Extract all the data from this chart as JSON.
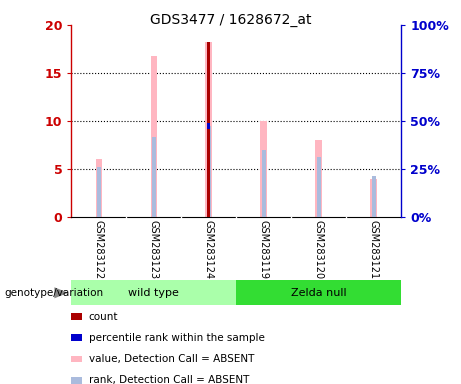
{
  "title": "GDS3477 / 1628672_at",
  "samples": [
    "GSM283122",
    "GSM283123",
    "GSM283124",
    "GSM283119",
    "GSM283120",
    "GSM283121"
  ],
  "ylim_left": [
    0,
    20
  ],
  "ylim_right": [
    0,
    100
  ],
  "yticks_left": [
    0,
    5,
    10,
    15,
    20
  ],
  "yticks_right": [
    0,
    25,
    50,
    75,
    100
  ],
  "ytick_labels_left": [
    "0",
    "5",
    "10",
    "15",
    "20"
  ],
  "ytick_labels_right": [
    "0%",
    "25%",
    "50%",
    "75%",
    "100%"
  ],
  "count_values": [
    0,
    0,
    18.2,
    0,
    0,
    0
  ],
  "count_color": "#AA0000",
  "percentile_values": [
    0,
    0,
    9.5,
    0,
    0,
    0
  ],
  "percentile_color": "#0000CC",
  "value_absent": [
    6.0,
    16.8,
    18.2,
    10.0,
    8.0,
    4.0
  ],
  "value_absent_color": "#FFB6C1",
  "rank_absent": [
    5.2,
    8.3,
    9.5,
    7.0,
    6.2,
    4.3
  ],
  "rank_absent_color": "#AABBDD",
  "axis_color_left": "#CC0000",
  "axis_color_right": "#0000CC",
  "genotype_label": "genotype/variation",
  "group_divider": 2.5,
  "wild_type_color": "#AAFFAA",
  "zelda_color": "#33DD33",
  "sample_bg": "#CCCCCC",
  "legend_items": [
    {
      "label": "count",
      "color": "#AA0000"
    },
    {
      "label": "percentile rank within the sample",
      "color": "#0000CC"
    },
    {
      "label": "value, Detection Call = ABSENT",
      "color": "#FFB6C1"
    },
    {
      "label": "rank, Detection Call = ABSENT",
      "color": "#AABBDD"
    }
  ]
}
